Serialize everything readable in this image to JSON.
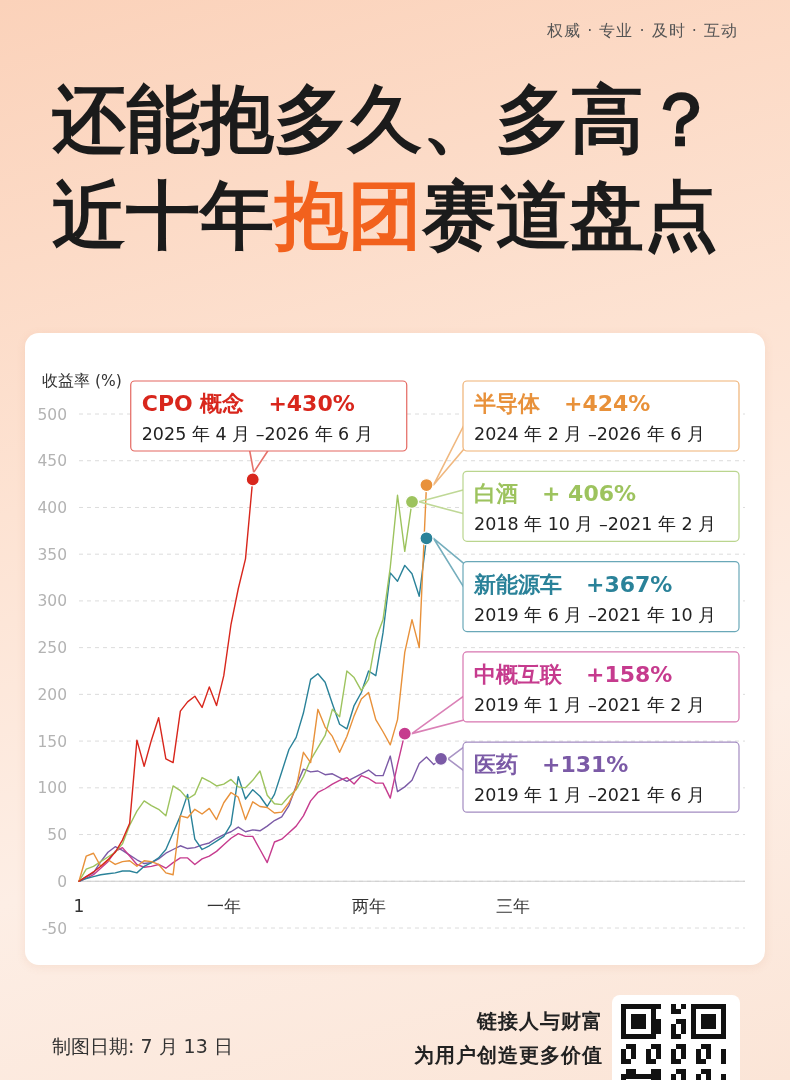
{
  "chart_data": {
    "type": "line",
    "title": "还能抱多久、多高？近十年**抱团**赛道盘点",
    "ylabel": "收益率 (%)",
    "categories": [
      "1",
      null,
      null,
      null,
      null,
      null,
      null,
      null,
      null,
      null,
      null,
      null,
      null,
      null,
      null,
      null,
      null,
      null,
      null,
      null,
      "一年",
      null,
      null,
      null,
      null,
      null,
      null,
      null,
      null,
      null,
      null,
      null,
      null,
      null,
      null,
      null,
      null,
      null,
      null,
      null,
      "两年",
      null,
      null,
      null,
      null,
      null,
      null,
      null,
      null,
      null,
      null,
      null,
      null,
      null,
      null,
      null,
      null,
      null,
      null,
      null,
      "三年",
      null,
      null,
      null,
      null,
      null,
      null,
      null,
      null,
      null,
      null,
      null,
      null,
      null,
      null,
      null,
      null,
      null,
      null,
      null,
      null,
      null,
      null,
      null,
      null,
      null,
      null,
      null,
      null,
      null,
      null,
      null,
      null
    ],
    "ylim": [
      -50,
      500
    ],
    "yticks": [
      -50,
      0,
      50,
      100,
      150,
      200,
      250,
      300,
      350,
      400,
      450,
      500
    ],
    "grid": "y",
    "line_style": "solid",
    "series": [
      {
        "name": "CPO 概念",
        "color": "#d8261c",
        "values": [
          0,
          5,
          10,
          16,
          23,
          31,
          44,
          62,
          151,
          123,
          151,
          175,
          131,
          127,
          182,
          192,
          198,
          186,
          208,
          188,
          220,
          275,
          313,
          345,
          430,
          null,
          null,
          null,
          null,
          null,
          null,
          null,
          null,
          null,
          null,
          null,
          null,
          null,
          null,
          null,
          null,
          null,
          null,
          null,
          null,
          null,
          null,
          null,
          null,
          null,
          null,
          null,
          null,
          null,
          null,
          null,
          null,
          null,
          null,
          null,
          null,
          null,
          null,
          null,
          null,
          null,
          null,
          null,
          null,
          null,
          null,
          null,
          null,
          null,
          null,
          null,
          null,
          null,
          null,
          null,
          null,
          null,
          null,
          null,
          null,
          null,
          null,
          null,
          null,
          null,
          null,
          null,
          null
        ]
      },
      {
        "name": "半导体",
        "color": "#e8913a",
        "values": [
          0,
          27,
          30,
          16,
          23,
          18,
          21,
          22,
          16,
          22,
          21,
          18,
          9,
          7,
          70,
          68,
          77,
          72,
          78,
          66,
          84,
          95,
          90,
          66,
          85,
          80,
          79,
          73,
          74,
          84,
          100,
          138,
          127,
          184,
          165,
          155,
          138,
          155,
          177,
          195,
          202,
          173,
          160,
          146,
          173,
          245,
          280,
          250,
          424,
          null,
          null,
          null,
          null,
          null,
          null,
          null,
          null,
          null,
          null,
          null,
          null,
          null,
          null,
          null,
          null,
          null,
          null,
          null,
          null,
          null,
          null,
          null,
          null,
          null,
          null,
          null,
          null,
          null,
          null,
          null,
          null,
          null,
          null,
          null,
          null,
          null,
          null,
          null,
          null,
          null,
          null,
          null,
          null
        ]
      },
      {
        "name": "白酒",
        "color": "#9dc35e",
        "values": [
          0,
          13,
          16,
          21,
          26,
          31,
          40,
          60,
          75,
          86,
          81,
          77,
          70,
          102,
          97,
          88,
          93,
          111,
          107,
          102,
          104,
          109,
          101,
          100,
          108,
          118,
          92,
          83,
          82,
          91,
          98,
          112,
          130,
          143,
          156,
          184,
          176,
          225,
          218,
          204,
          216,
          259,
          280,
          336,
          413,
          353,
          406,
          null,
          null,
          null,
          null,
          null,
          null,
          null,
          null,
          null,
          null,
          null,
          null,
          null,
          null,
          null,
          null,
          null,
          null,
          null,
          null,
          null,
          null,
          null,
          null,
          null,
          null,
          null,
          null,
          null,
          null,
          null,
          null,
          null,
          null,
          null,
          null,
          null,
          null,
          null,
          null,
          null,
          null,
          null,
          null,
          null,
          null
        ]
      },
      {
        "name": "新能源车",
        "color": "#2a8299",
        "values": [
          0,
          3,
          5,
          7,
          8,
          9,
          11,
          11,
          9,
          16,
          20,
          25,
          34,
          52,
          70,
          93,
          45,
          34,
          38,
          43,
          48,
          61,
          112,
          88,
          98,
          91,
          80,
          93,
          117,
          141,
          154,
          180,
          216,
          222,
          213,
          190,
          168,
          163,
          188,
          202,
          225,
          220,
          266,
          330,
          321,
          338,
          329,
          305,
          367,
          null,
          null,
          null,
          null,
          null,
          null,
          null,
          null,
          null,
          null,
          null,
          null,
          null,
          null,
          null,
          null,
          null,
          null,
          null,
          null,
          null,
          null,
          null,
          null,
          null,
          null,
          null,
          null,
          null,
          null,
          null,
          null,
          null,
          null,
          null,
          null,
          null,
          null,
          null,
          null,
          null,
          null,
          null,
          null
        ]
      },
      {
        "name": "中概互联",
        "color": "#c63b8e",
        "values": [
          0,
          3,
          7,
          14,
          21,
          32,
          36,
          27,
          18,
          15,
          16,
          18,
          14,
          20,
          25,
          25,
          18,
          24,
          27,
          32,
          39,
          46,
          51,
          48,
          48,
          34,
          20,
          42,
          45,
          52,
          59,
          70,
          86,
          95,
          99,
          104,
          108,
          111,
          104,
          113,
          110,
          105,
          105,
          89,
          125,
          158,
          null,
          null,
          null,
          null,
          null,
          null,
          null,
          null,
          null,
          null,
          null,
          null,
          null,
          null,
          null,
          null,
          null,
          null,
          null,
          null,
          null,
          null,
          null,
          null,
          null,
          null,
          null,
          null,
          null,
          null,
          null,
          null,
          null,
          null,
          null,
          null,
          null,
          null,
          null,
          null,
          null,
          null,
          null,
          null,
          null,
          null,
          null
        ]
      },
      {
        "name": "医药",
        "color": "#7b5aa6",
        "values": [
          0,
          5,
          9,
          21,
          31,
          37,
          33,
          28,
          23,
          19,
          20,
          24,
          30,
          34,
          38,
          35,
          36,
          39,
          41,
          46,
          50,
          53,
          58,
          53,
          55,
          54,
          59,
          65,
          69,
          81,
          102,
          120,
          117,
          118,
          114,
          115,
          111,
          107,
          111,
          115,
          119,
          113,
          113,
          134,
          96,
          101,
          108,
          126,
          133,
          125,
          131,
          null,
          null,
          null,
          null,
          null,
          null,
          null,
          null,
          null,
          null,
          null,
          null,
          null,
          null,
          null,
          null,
          null,
          null,
          null,
          null,
          null,
          null,
          null,
          null,
          null,
          null,
          null,
          null,
          null,
          null,
          null,
          null,
          null,
          null,
          null,
          null,
          null,
          null,
          null,
          null,
          null,
          null
        ]
      }
    ],
    "annotations": [
      "权威 · 专业 · 及时 · 互动",
      "+430%",
      "2025 年 4 月 –2026 年 6 月",
      "+424%",
      "2024 年 2 月 –2026 年 6 月",
      "+ 406%",
      "2018 年 10 月 –2021 年 2 月",
      "+367%",
      "2019 年 6 月 –2021 年 10 月",
      "+158%",
      "2019 年 1 月 –2021 年 2 月",
      "+131%",
      "2019 年 1 月 –2021 年 6 月",
      "制图日期: 7 月 13 日",
      "链接人与财富",
      "为用户创造更多价值"
    ]
  }
}
